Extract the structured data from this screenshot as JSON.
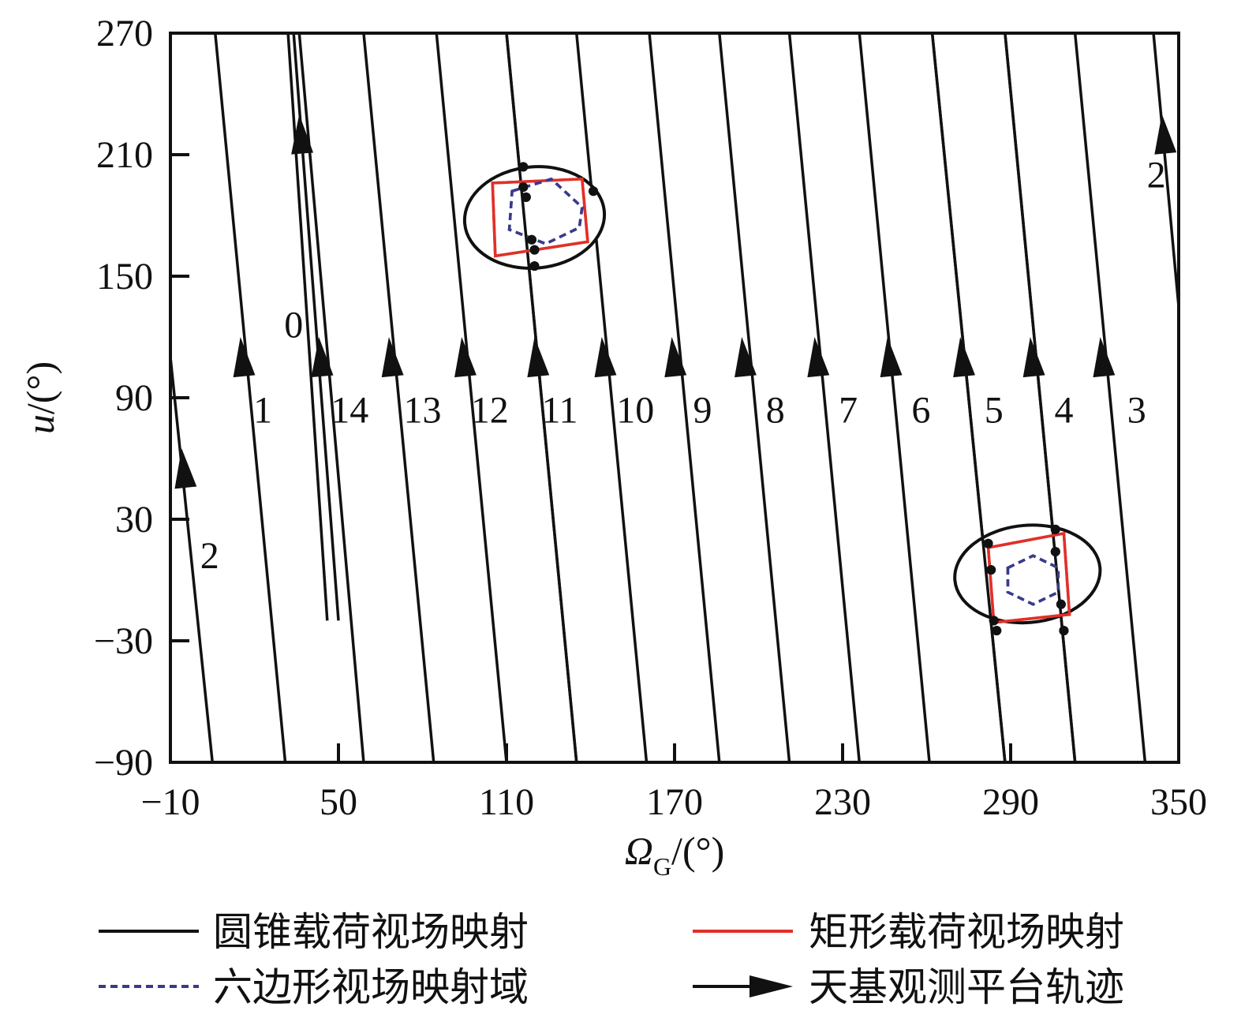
{
  "chart_data": {
    "type": "line",
    "title": "",
    "xlabel": {
      "symbol": "Ω",
      "subscript": "G",
      "unit": "/(°)"
    },
    "ylabel": {
      "symbol": "u",
      "unit": "/(°)"
    },
    "xlim": [
      -10,
      350
    ],
    "ylim": [
      -90,
      270
    ],
    "xticks": [
      "-10",
      "50",
      "110",
      "170",
      "230",
      "290",
      "350"
    ],
    "yticks": [
      "-90",
      "-30",
      "30",
      "90",
      "150",
      "210",
      "270"
    ],
    "xtick_values": [
      -10,
      50,
      110,
      170,
      230,
      290,
      350
    ],
    "ytick_values": [
      -90,
      -30,
      30,
      90,
      150,
      210,
      270
    ],
    "grid": false,
    "legend_position": "bottom",
    "colors": {
      "cone": "#111111",
      "rect": "#e0302a",
      "hex": "#3a3a8c",
      "track": "#111111"
    },
    "tracks": [
      {
        "label": "2",
        "segment": [
          [
            -10,
            110
          ],
          [
            5,
            -90
          ]
        ],
        "arrow_at": [
          -6,
          65
        ],
        "label_pos": [
          4,
          12
        ]
      },
      {
        "label": "1",
        "segment": [
          [
            6,
            270
          ],
          [
            31,
            -90
          ]
        ],
        "arrow_at": [
          15,
          120
        ],
        "label_pos": [
          23,
          84
        ]
      },
      {
        "label": "0",
        "segment": [
          [
            34,
            270
          ],
          [
            50,
            -20
          ]
        ],
        "arrow_at": [
          36,
          230
        ],
        "label_pos": [
          34,
          126
        ]
      },
      {
        "label": "",
        "segment": [
          [
            32,
            270
          ],
          [
            46,
            -20
          ]
        ],
        "arrow_at": null,
        "label_pos": null
      },
      {
        "label": "14",
        "segment": [
          [
            36,
            270
          ],
          [
            59,
            -90
          ]
        ],
        "arrow_at": [
          43,
          120
        ],
        "label_pos": [
          54,
          84
        ]
      },
      {
        "label": "13",
        "segment": [
          [
            59,
            270
          ],
          [
            84,
            -90
          ]
        ],
        "arrow_at": [
          68,
          120
        ],
        "label_pos": [
          80,
          84
        ]
      },
      {
        "label": "12",
        "segment": [
          [
            85,
            270
          ],
          [
            110,
            -90
          ]
        ],
        "arrow_at": [
          94,
          120
        ],
        "label_pos": [
          104,
          84
        ]
      },
      {
        "label": "11",
        "segment": [
          [
            110,
            270
          ],
          [
            135,
            -90
          ]
        ],
        "arrow_at": [
          120,
          120
        ],
        "label_pos": [
          129,
          84
        ]
      },
      {
        "label": "10",
        "segment": [
          [
            135,
            270
          ],
          [
            160,
            -90
          ]
        ],
        "arrow_at": [
          144,
          120
        ],
        "label_pos": [
          156,
          84
        ]
      },
      {
        "label": "9",
        "segment": [
          [
            161,
            270
          ],
          [
            186,
            -90
          ]
        ],
        "arrow_at": [
          169,
          120
        ],
        "label_pos": [
          180,
          84
        ]
      },
      {
        "label": "8",
        "segment": [
          [
            186,
            270
          ],
          [
            211,
            -90
          ]
        ],
        "arrow_at": [
          194,
          120
        ],
        "label_pos": [
          206,
          84
        ]
      },
      {
        "label": "7",
        "segment": [
          [
            211,
            270
          ],
          [
            236,
            -90
          ]
        ],
        "arrow_at": [
          220,
          120
        ],
        "label_pos": [
          232,
          84
        ]
      },
      {
        "label": "6",
        "segment": [
          [
            236,
            270
          ],
          [
            261,
            -90
          ]
        ],
        "arrow_at": [
          246,
          120
        ],
        "label_pos": [
          258,
          84
        ]
      },
      {
        "label": "5",
        "segment": [
          [
            262,
            270
          ],
          [
            288,
            -90
          ]
        ],
        "arrow_at": [
          272,
          120
        ],
        "label_pos": [
          284,
          84
        ]
      },
      {
        "label": "4",
        "segment": [
          [
            288,
            270
          ],
          [
            313,
            -90
          ]
        ],
        "arrow_at": [
          297,
          120
        ],
        "label_pos": [
          309,
          84
        ]
      },
      {
        "label": "3",
        "segment": [
          [
            313,
            270
          ],
          [
            338,
            -90
          ]
        ],
        "arrow_at": [
          322,
          120
        ],
        "label_pos": [
          335,
          84
        ]
      },
      {
        "label": "2",
        "segment": [
          [
            341,
            270
          ],
          [
            350,
            135
          ]
        ],
        "arrow_at": [
          344,
          230
        ],
        "label_pos": [
          342,
          200
        ]
      }
    ],
    "regions": [
      {
        "name": "region-upper",
        "ellipse": {
          "center": [
            120,
            179
          ],
          "rx": 25,
          "ry": 25,
          "rotation": -5
        },
        "rect": [
          [
            105,
            196
          ],
          [
            137,
            198
          ],
          [
            139,
            167
          ],
          [
            106,
            160
          ]
        ],
        "hexagon": [
          [
            112,
            192
          ],
          [
            126,
            198
          ],
          [
            137,
            184
          ],
          [
            136,
            174
          ],
          [
            124,
            166
          ],
          [
            111,
            173
          ]
        ],
        "points": [
          [
            116,
            204
          ],
          [
            116,
            194
          ],
          [
            117,
            189
          ],
          [
            119,
            168
          ],
          [
            120,
            163
          ],
          [
            120,
            155
          ],
          [
            141,
            192
          ]
        ]
      },
      {
        "name": "region-lower",
        "ellipse": {
          "center": [
            296,
            3
          ],
          "rx": 26,
          "ry": 24,
          "rotation": -5
        },
        "rect": [
          [
            282,
            16
          ],
          [
            309,
            23
          ],
          [
            311,
            -17
          ],
          [
            284,
            -21
          ]
        ],
        "hexagon": [
          [
            289,
            6
          ],
          [
            298,
            12
          ],
          [
            307,
            6
          ],
          [
            307,
            -6
          ],
          [
            298,
            -12
          ],
          [
            289,
            -6
          ]
        ],
        "points": [
          [
            282,
            18
          ],
          [
            283,
            5
          ],
          [
            284,
            -20
          ],
          [
            285,
            -25
          ],
          [
            306,
            25
          ],
          [
            306,
            14
          ],
          [
            308,
            -12
          ],
          [
            309,
            -25
          ]
        ]
      }
    ]
  },
  "legend": [
    {
      "label": "圆锥载荷视场映射",
      "style": "solid",
      "color": "#111111"
    },
    {
      "label": "矩形载荷视场映射",
      "style": "solid",
      "color": "#e0302a"
    },
    {
      "label": "六边形视场映射域",
      "style": "dashed",
      "color": "#3a3a8c"
    },
    {
      "label": "天基观测平台轨迹",
      "style": "arrow",
      "color": "#111111"
    }
  ]
}
